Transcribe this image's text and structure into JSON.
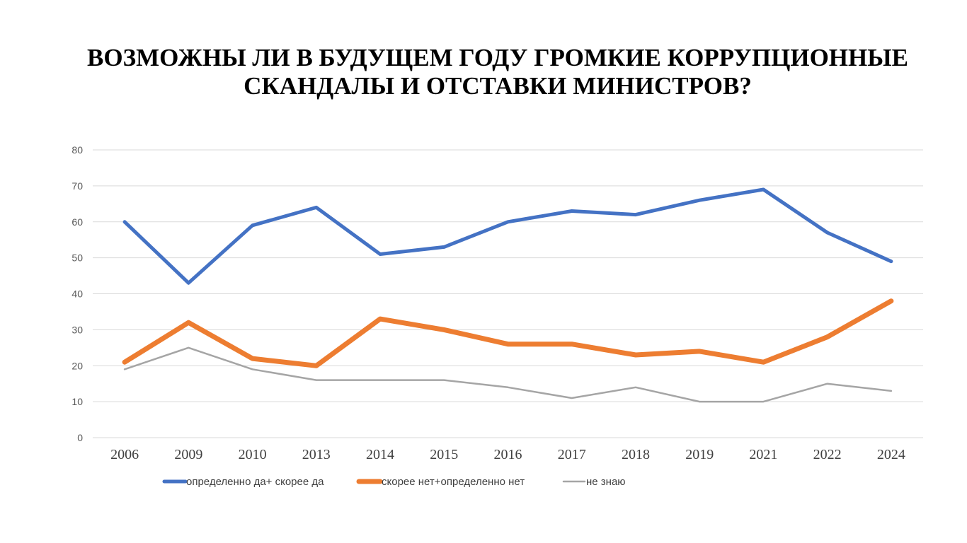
{
  "chart_data": {
    "type": "line",
    "title": "ВОЗМОЖНЫ ЛИ В БУДУЩЕМ ГОДУ ГРОМКИЕ КОРРУПЦИОННЫЕ СКАНДАЛЫ И ОТСТАВКИ МИНИСТРОВ?",
    "title_lines": [
      "ВОЗМОЖНЫ ЛИ В БУДУЩЕМ ГОДУ ГРОМКИЕ КОРРУПЦИОННЫЕ",
      "СКАНДАЛЫ И ОТСТАВКИ МИНИСТРОВ?"
    ],
    "categories": [
      "2006",
      "2009",
      "2010",
      "2013",
      "2014",
      "2015",
      "2016",
      "2017",
      "2018",
      "2019",
      "2021",
      "2022",
      "2024"
    ],
    "yticks": [
      0,
      10,
      20,
      30,
      40,
      50,
      60,
      70,
      80
    ],
    "ylim": [
      0,
      80
    ],
    "grid": true,
    "legend_position": "bottom",
    "series": [
      {
        "name": "определенно да+ скорее да",
        "color": "#4472C4",
        "values": [
          60,
          43,
          59,
          64,
          51,
          53,
          60,
          63,
          62,
          66,
          69,
          57,
          49
        ]
      },
      {
        "name": "скорее нет+определенно нет",
        "color": "#ED7D31",
        "values": [
          21,
          32,
          22,
          20,
          33,
          30,
          26,
          26,
          23,
          24,
          21,
          28,
          38
        ]
      },
      {
        "name": "не знаю",
        "color": "#A5A5A5",
        "values": [
          19,
          25,
          19,
          16,
          16,
          16,
          14,
          11,
          14,
          10,
          10,
          15,
          13
        ]
      }
    ]
  }
}
